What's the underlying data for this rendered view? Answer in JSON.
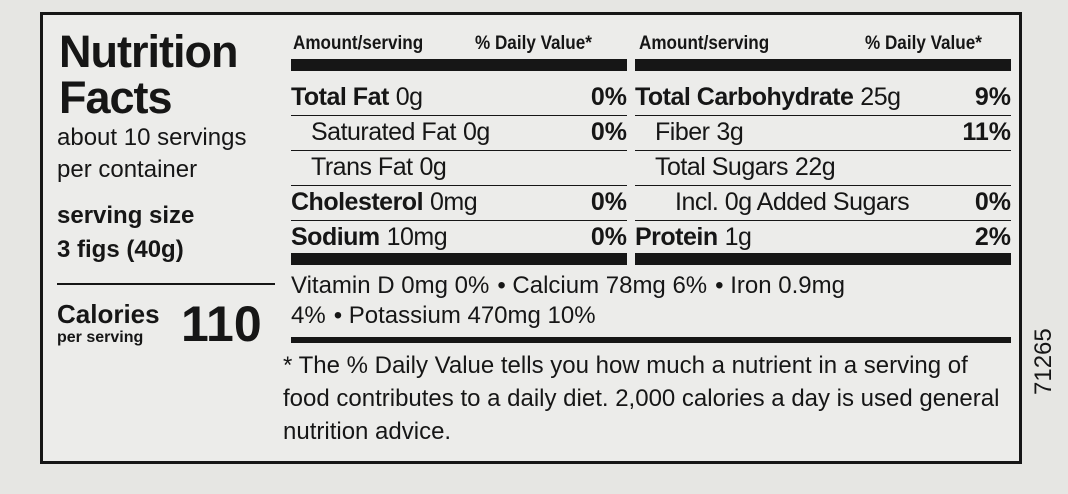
{
  "title_lines": [
    "Nutrition",
    "Facts"
  ],
  "servings_lines": [
    "about 10 servings",
    "per container"
  ],
  "serving_size": {
    "label": "serving size",
    "value": "3 figs (40g)"
  },
  "calories": {
    "label": "Calories",
    "sublabel": "per serving",
    "value": "110"
  },
  "left": {
    "headers": [
      "Amount/serving",
      "% Daily Value*"
    ],
    "rows": [
      {
        "name": "Total Fat",
        "amount": "0g",
        "dv": "0%",
        "bold": true,
        "indent": 0
      },
      {
        "name": "Saturated Fat",
        "amount": "0g",
        "dv": "0%",
        "bold": false,
        "indent": 1
      },
      {
        "name": "Trans Fat",
        "amount": "0g",
        "bold": false,
        "indent": 1
      },
      {
        "name": "Cholesterol",
        "amount": "0mg",
        "dv": "0%",
        "bold": true,
        "indent": 0
      },
      {
        "name": "Sodium",
        "amount": "10mg",
        "dv": "0%",
        "bold": true,
        "indent": 0
      }
    ]
  },
  "right": {
    "headers": [
      "Amount/serving",
      "% Daily Value*"
    ],
    "rows": [
      {
        "name": "Total Carbohydrate",
        "amount": "25g",
        "dv": "9%",
        "bold": true,
        "indent": 0
      },
      {
        "name": "Fiber",
        "amount": "3g",
        "dv": "11%",
        "bold": false,
        "indent": 1
      },
      {
        "name": "Total Sugars",
        "amount": "22g",
        "bold": false,
        "indent": 1
      },
      {
        "name": "Incl. 0g Added Sugars",
        "dv": "0%",
        "bold": false,
        "indent": 2
      },
      {
        "name": "Protein",
        "amount": "1g",
        "dv": "2%",
        "bold": true,
        "indent": 0
      }
    ]
  },
  "vitamins": [
    "Vitamin D 0mg 0%",
    "Calcium 78mg 6%",
    "Iron 0.9mg 4%",
    "Potassium 470mg 10%"
  ],
  "footnote": "* The % Daily Value tells you how much a nutrient in a serving of food contributes to a daily diet. 2,000 calories a day is used general nutrition advice.",
  "side_code": "71265"
}
